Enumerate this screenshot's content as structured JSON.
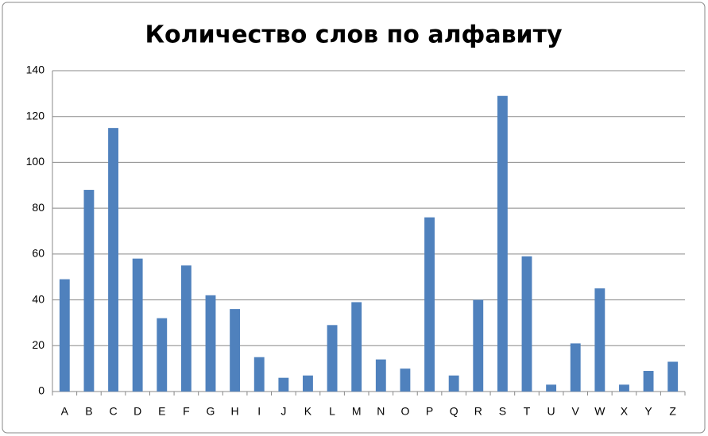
{
  "chart_data": {
    "type": "bar",
    "title": "Количество слов по алфавиту",
    "categories": [
      "A",
      "B",
      "C",
      "D",
      "E",
      "F",
      "G",
      "H",
      "I",
      "J",
      "K",
      "L",
      "M",
      "N",
      "O",
      "P",
      "Q",
      "R",
      "S",
      "T",
      "U",
      "V",
      "W",
      "X",
      "Y",
      "Z"
    ],
    "values": [
      49,
      88,
      115,
      58,
      32,
      55,
      42,
      36,
      15,
      6,
      7,
      29,
      39,
      14,
      10,
      76,
      7,
      40,
      129,
      59,
      3,
      21,
      45,
      3,
      9,
      13
    ],
    "color": "#4f81bd",
    "ylim": [
      0,
      140
    ],
    "yticks": [
      0,
      20,
      40,
      60,
      80,
      100,
      120,
      140
    ],
    "grid": true
  }
}
